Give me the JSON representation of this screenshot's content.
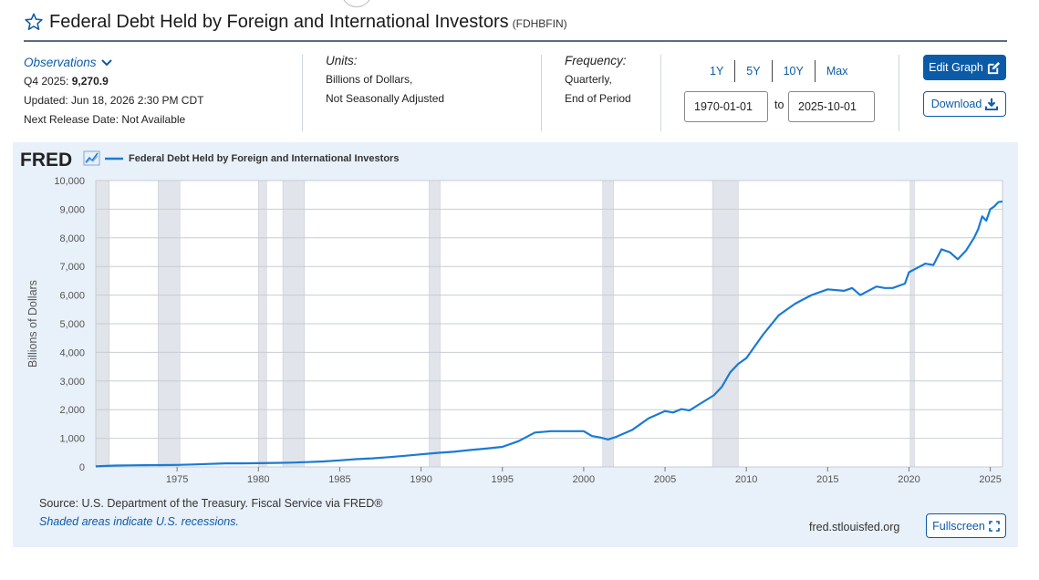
{
  "header": {
    "title": "Federal Debt Held by Foreign and International Investors",
    "series_id": "(FDHBFIN)"
  },
  "observations": {
    "toggle_label": "Observations",
    "period_label": "Q4 2025:",
    "value": "9,270.9",
    "updated": "Updated: Jun 18, 2026 2:30 PM CDT",
    "next_release": "Next Release Date: Not Available"
  },
  "units": {
    "heading": "Units:",
    "line1": "Billions of Dollars,",
    "line2": "Not Seasonally Adjusted"
  },
  "frequency": {
    "heading": "Frequency:",
    "line1": "Quarterly,",
    "line2": "End of Period"
  },
  "range": {
    "buttons": [
      "1Y",
      "5Y",
      "10Y",
      "Max"
    ],
    "start": "1970-01-01",
    "to_label": "to",
    "end": "2025-10-01"
  },
  "actions": {
    "edit_graph": "Edit Graph",
    "download": "Download",
    "fullscreen": "Fullscreen"
  },
  "footer": {
    "source": "Source: U.S. Department of the Treasury. Fiscal Service via FRED®",
    "shaded_note": "Shaded areas indicate U.S. recessions.",
    "site": "fred.stlouisfed.org"
  },
  "colors": {
    "accent": "#0c5ba8",
    "series_line": "#1a7ad4",
    "recession_shade": "#e1e4ea",
    "panel_bg": "#e8f0f9"
  },
  "chart_data": {
    "type": "line",
    "logo": "FRED",
    "legend": "Federal Debt Held by Foreign and International Investors",
    "ylabel": "Billions of Dollars",
    "xlabel": "",
    "xlim": [
      1970.0,
      2025.75
    ],
    "ylim": [
      0,
      10000
    ],
    "yticks": [
      0,
      1000,
      2000,
      3000,
      4000,
      5000,
      6000,
      7000,
      8000,
      9000,
      10000
    ],
    "ytick_labels": [
      "0",
      "1,000",
      "2,000",
      "3,000",
      "4,000",
      "5,000",
      "6,000",
      "7,000",
      "8,000",
      "9,000",
      "10,000"
    ],
    "xticks": [
      1975,
      1980,
      1985,
      1990,
      1995,
      2000,
      2005,
      2010,
      2015,
      2020,
      2025
    ],
    "xtick_labels": [
      "1975",
      "1980",
      "1985",
      "1990",
      "1995",
      "2000",
      "2005",
      "2010",
      "2015",
      "2020",
      "2025"
    ],
    "grid": true,
    "recessions": [
      [
        1969.92,
        1970.83
      ],
      [
        1973.83,
        1975.17
      ],
      [
        1980.0,
        1980.5
      ],
      [
        1981.5,
        1982.83
      ],
      [
        1990.5,
        1991.17
      ],
      [
        2001.17,
        2001.83
      ],
      [
        2007.92,
        2009.5
      ],
      [
        2020.08,
        2020.33
      ]
    ],
    "series": [
      {
        "name": "Federal Debt Held by Foreign and International Investors",
        "x": [
          1970.0,
          1971.0,
          1972.0,
          1973.0,
          1974.0,
          1975.0,
          1976.0,
          1977.0,
          1978.0,
          1979.0,
          1980.0,
          1981.0,
          1982.0,
          1983.0,
          1984.0,
          1985.0,
          1986.0,
          1987.0,
          1988.0,
          1989.0,
          1990.0,
          1991.0,
          1992.0,
          1993.0,
          1994.0,
          1995.0,
          1996.0,
          1997.0,
          1998.0,
          1999.0,
          2000.0,
          2000.5,
          2001.0,
          2001.5,
          2002.0,
          2003.0,
          2004.0,
          2005.0,
          2005.5,
          2006.0,
          2006.5,
          2007.0,
          2008.0,
          2008.5,
          2009.0,
          2009.5,
          2010.0,
          2011.0,
          2012.0,
          2013.0,
          2014.0,
          2015.0,
          2016.0,
          2016.5,
          2017.0,
          2018.0,
          2018.5,
          2019.0,
          2019.75,
          2020.0,
          2020.5,
          2021.0,
          2021.5,
          2022.0,
          2022.5,
          2023.0,
          2023.5,
          2024.0,
          2024.25,
          2024.5,
          2024.75,
          2025.0,
          2025.25,
          2025.5,
          2025.75
        ],
        "values": [
          20,
          45,
          55,
          60,
          65,
          70,
          85,
          105,
          125,
          125,
          130,
          140,
          150,
          170,
          190,
          230,
          270,
          300,
          340,
          390,
          440,
          490,
          530,
          590,
          640,
          700,
          900,
          1200,
          1250,
          1250,
          1250,
          1080,
          1030,
          960,
          1050,
          1300,
          1700,
          1950,
          1900,
          2020,
          1970,
          2150,
          2500,
          2800,
          3300,
          3600,
          3800,
          4600,
          5300,
          5700,
          6000,
          6200,
          6150,
          6250,
          6000,
          6300,
          6250,
          6250,
          6400,
          6800,
          6950,
          7100,
          7050,
          7600,
          7500,
          7250,
          7550,
          8000,
          8300,
          8750,
          8600,
          9000,
          9100,
          9250,
          9270.9
        ]
      }
    ]
  }
}
